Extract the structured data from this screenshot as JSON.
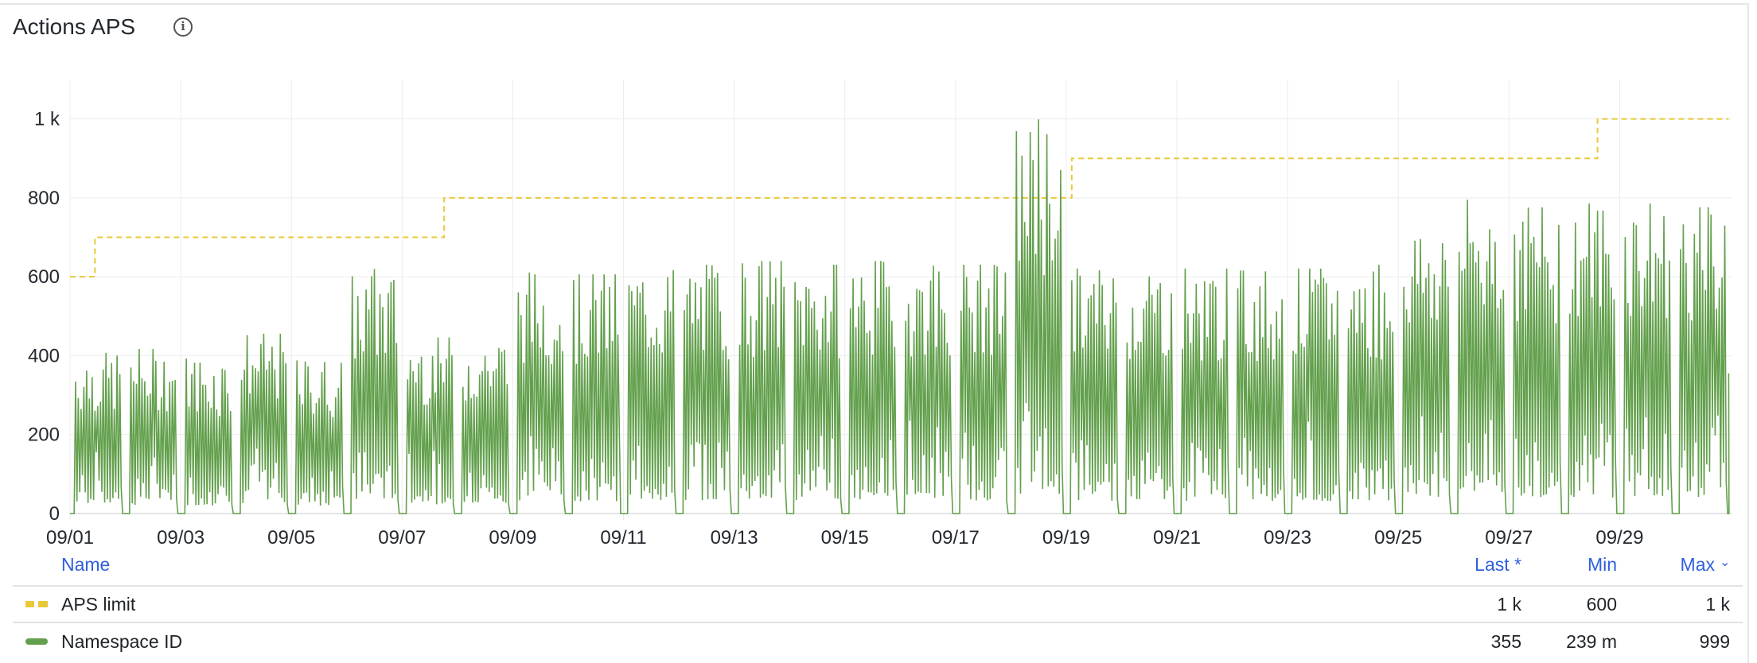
{
  "header": {
    "title": "Actions APS",
    "info_icon": "info-circle-icon"
  },
  "chart_data": {
    "type": "line",
    "title": "Actions APS",
    "x_ticks": [
      "09/01",
      "09/03",
      "09/05",
      "09/07",
      "09/09",
      "09/11",
      "09/13",
      "09/15",
      "09/17",
      "09/19",
      "09/21",
      "09/23",
      "09/25",
      "09/27",
      "09/29"
    ],
    "y_ticks": [
      "0",
      "200",
      "400",
      "600",
      "800",
      "1 k"
    ],
    "y_tick_values": [
      0,
      200,
      400,
      600,
      800,
      1000
    ],
    "ylim": [
      0,
      1100
    ],
    "x_range_days": [
      "09/01",
      "10/01"
    ],
    "grid": true,
    "legend_position": "bottom",
    "series": [
      {
        "name": "APS limit",
        "color": "#e8c93a",
        "style": "dashed",
        "steps": [
          {
            "from_day": 0,
            "value": 600
          },
          {
            "from_day": 0.45,
            "value": 700
          },
          {
            "from_day": 6.76,
            "value": 800
          },
          {
            "from_day": 18.1,
            "value": 900
          },
          {
            "from_day": 27.6,
            "value": 1000
          }
        ]
      },
      {
        "name": "Namespace ID",
        "color": "#63a04d",
        "style": "solid",
        "daily_peaks": [
          420,
          430,
          410,
          470,
          400,
          620,
          460,
          460,
          630,
          625,
          640,
          650,
          660,
          650,
          660,
          660,
          650,
          999,
          640,
          645,
          640,
          635,
          640,
          650,
          750,
          820,
          800,
          810,
          810,
          800
        ],
        "last": 355
      }
    ]
  },
  "legend": {
    "columns": {
      "name": "Name",
      "last": "Last *",
      "min": "Min",
      "max": "Max"
    },
    "sort_icon": "chevron-down-icon",
    "rows": [
      {
        "name": "APS limit",
        "last": "1 k",
        "min": "600",
        "max": "1 k",
        "color": "#e8c93a"
      },
      {
        "name": "Namespace ID",
        "last": "355",
        "min": "239 m",
        "max": "999",
        "color": "#63a04d"
      }
    ]
  }
}
